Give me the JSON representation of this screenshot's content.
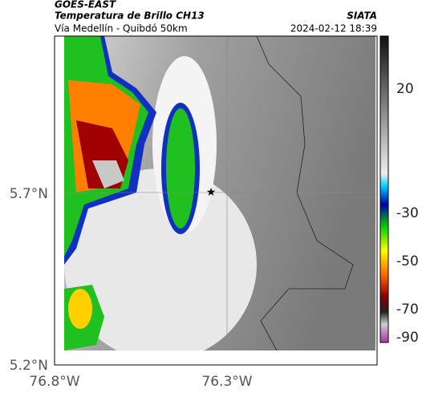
{
  "header": {
    "source": "GOES-EAST",
    "title": "Temperatura de Brillo CH13",
    "subtitle": "Vía Medellín - Quibdó 50km",
    "agency": "SIATA",
    "timestamp": "2024-02-12 18:39"
  },
  "axes": {
    "lat_ticks": [
      "5.7°N",
      "5.2°N"
    ],
    "lon_ticks": [
      "76.8°W",
      "76.3°W"
    ]
  },
  "colorbar": {
    "ticks": [
      20,
      -30,
      -50,
      -70,
      -90
    ]
  }
}
